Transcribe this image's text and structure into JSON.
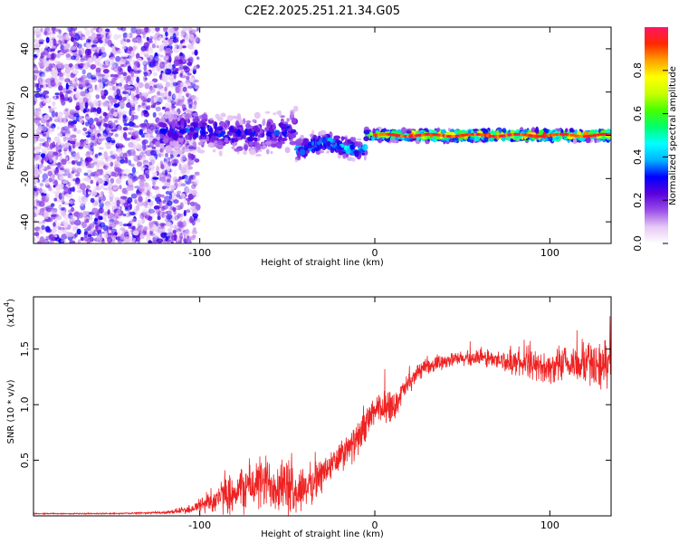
{
  "title": "C2E2.2025.251.21.34.G05",
  "chart_data": [
    {
      "type": "heatmap",
      "name": "spectrogram",
      "xlabel": "Height of straight line (km)",
      "ylabel": "Frequency (Hz)",
      "xlim": [
        -195,
        135
      ],
      "ylim": [
        -50,
        50
      ],
      "x_ticks": [
        -100,
        0,
        100
      ],
      "x_tick_labels": [
        "-100",
        "0",
        "100"
      ],
      "y_ticks": [
        -40,
        -20,
        0,
        20,
        40
      ],
      "y_tick_labels": [
        "-40",
        "-20",
        "0",
        "20",
        "40"
      ],
      "colorbar": {
        "label": "Normalized spectral amplitude",
        "range": [
          0,
          1
        ],
        "ticks": [
          0.0,
          0.2,
          0.4,
          0.6,
          0.8
        ],
        "tick_labels": [
          "0.0",
          "0.2",
          "0.4",
          "0.6",
          "0.8"
        ],
        "colormap": [
          "#ffffff",
          "#e6c8f5",
          "#9a4de8",
          "#5a00dc",
          "#0000ff",
          "#00b4ff",
          "#00ffff",
          "#00ff6e",
          "#46ff00",
          "#c8ff00",
          "#ffff00",
          "#ffa000",
          "#ff2800",
          "#ff1464"
        ]
      },
      "regions": [
        {
          "x_range": [
            -195,
            -105
          ],
          "freq_range": [
            -50,
            50
          ],
          "amplitude": 0.15,
          "description": "noise"
        },
        {
          "x_range": [
            -120,
            -45
          ],
          "freq_center": 0,
          "freq_halfwidth": 8,
          "amplitude": 0.35
        },
        {
          "x_range": [
            -45,
            0
          ],
          "freq_center": -5,
          "freq_halfwidth": 4,
          "amplitude": 0.5
        },
        {
          "x_range": [
            0,
            135
          ],
          "freq_center": 0,
          "freq_halfwidth": 2,
          "amplitude": 0.95
        }
      ]
    },
    {
      "type": "line",
      "name": "snr",
      "xlabel": "Height of straight line (km)",
      "ylabel": "SNR (10 * v/v)",
      "y_scale_label": "(x10",
      "y_scale_exp": "4",
      "xlim": [
        -195,
        135
      ],
      "ylim": [
        0,
        1.97
      ],
      "x_ticks": [
        -100,
        0,
        100
      ],
      "x_tick_labels": [
        "-100",
        "0",
        "100"
      ],
      "y_ticks": [
        0.5,
        1.0,
        1.5
      ],
      "y_tick_labels": [
        "0.5",
        "1.0",
        "1.5"
      ],
      "line_color": "#ee2222",
      "series": [
        {
          "name": "SNR",
          "x": [
            -195,
            -150,
            -120,
            -105,
            -95,
            -80,
            -70,
            -60,
            -50,
            -45,
            -40,
            -35,
            -30,
            -20,
            -10,
            -5,
            0,
            5,
            8,
            10,
            15,
            25,
            40,
            60,
            80,
            100,
            120,
            130,
            135
          ],
          "mean": [
            0.02,
            0.02,
            0.03,
            0.06,
            0.13,
            0.22,
            0.28,
            0.3,
            0.26,
            0.2,
            0.26,
            0.3,
            0.38,
            0.52,
            0.68,
            0.82,
            0.95,
            0.95,
            1.05,
            0.95,
            1.1,
            1.3,
            1.4,
            1.42,
            1.38,
            1.33,
            1.38,
            1.35,
            1.4
          ],
          "noise": [
            0.005,
            0.005,
            0.01,
            0.04,
            0.1,
            0.18,
            0.22,
            0.24,
            0.24,
            0.18,
            0.18,
            0.16,
            0.15,
            0.14,
            0.14,
            0.14,
            0.12,
            0.14,
            0.2,
            0.12,
            0.1,
            0.07,
            0.06,
            0.07,
            0.1,
            0.13,
            0.18,
            0.2,
            0.2
          ]
        }
      ]
    }
  ]
}
